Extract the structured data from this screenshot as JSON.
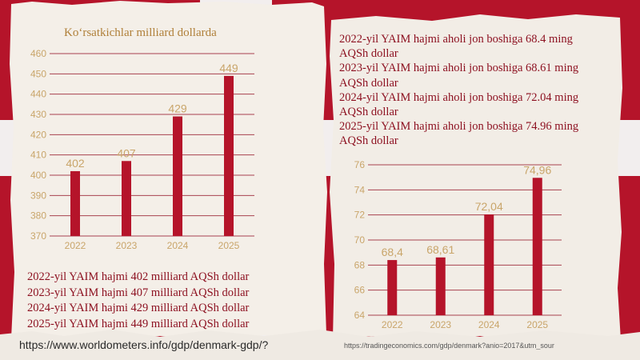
{
  "left_panel": {
    "title": "Ko‘rsatkichlar milliard dollarda",
    "notes": [
      "2022-yil YAIM hajmi 402 milliard AQSh dollar",
      "2023-yil YAIM hajmi 407 milliard AQSh dollar",
      "2024-yil YAIM hajmi 429 milliard AQSh dollar",
      "2025-yil YAIM hajmi 449 milliard AQSh dollar"
    ],
    "source": "https://www.worldometers.info/gdp/denmark-gdp/?"
  },
  "right_panel": {
    "notes": [
      "2022-yil YAIM hajmi aholi jon boshiga 68.4 ming AQSh dollar",
      "2023-yil YAIM hajmi aholi jon boshiga  68.61 ming AQSh dollar",
      "2024-yil YAIM hajmi aholi jon boshiga 72.04 ming AQSh dollar",
      "2025-yil YAIM hajmi aholi jon boshiga 74.96 ming AQSh dollar"
    ],
    "source": "https://tradingeconomics.com/gdp/denmark?anio=2017&utm_sour"
  },
  "colors": {
    "bar": "#b5142a",
    "grid": "#a8424f",
    "axis_text": "#c9a56a",
    "label": "#c9a56a"
  },
  "chart_data": [
    {
      "type": "bar",
      "title": "Ko‘rsatkichlar milliard dollarda",
      "categories": [
        "2022",
        "2023",
        "2024",
        "2025"
      ],
      "values": [
        402,
        407,
        429,
        449
      ],
      "data_labels": [
        "402",
        "407",
        "429",
        "449"
      ],
      "ylim": [
        370,
        460
      ],
      "yticks": [
        370,
        380,
        390,
        400,
        410,
        420,
        430,
        440,
        450,
        460
      ],
      "grid": true
    },
    {
      "type": "bar",
      "title": "",
      "categories": [
        "2022",
        "2023",
        "2024",
        "2025"
      ],
      "values": [
        68.4,
        68.61,
        72.04,
        74.96
      ],
      "data_labels": [
        "68,4",
        "68,61",
        "72,04",
        "74,96"
      ],
      "ylim": [
        64,
        76
      ],
      "yticks": [
        64,
        66,
        68,
        70,
        72,
        74,
        76
      ],
      "grid": true
    }
  ]
}
